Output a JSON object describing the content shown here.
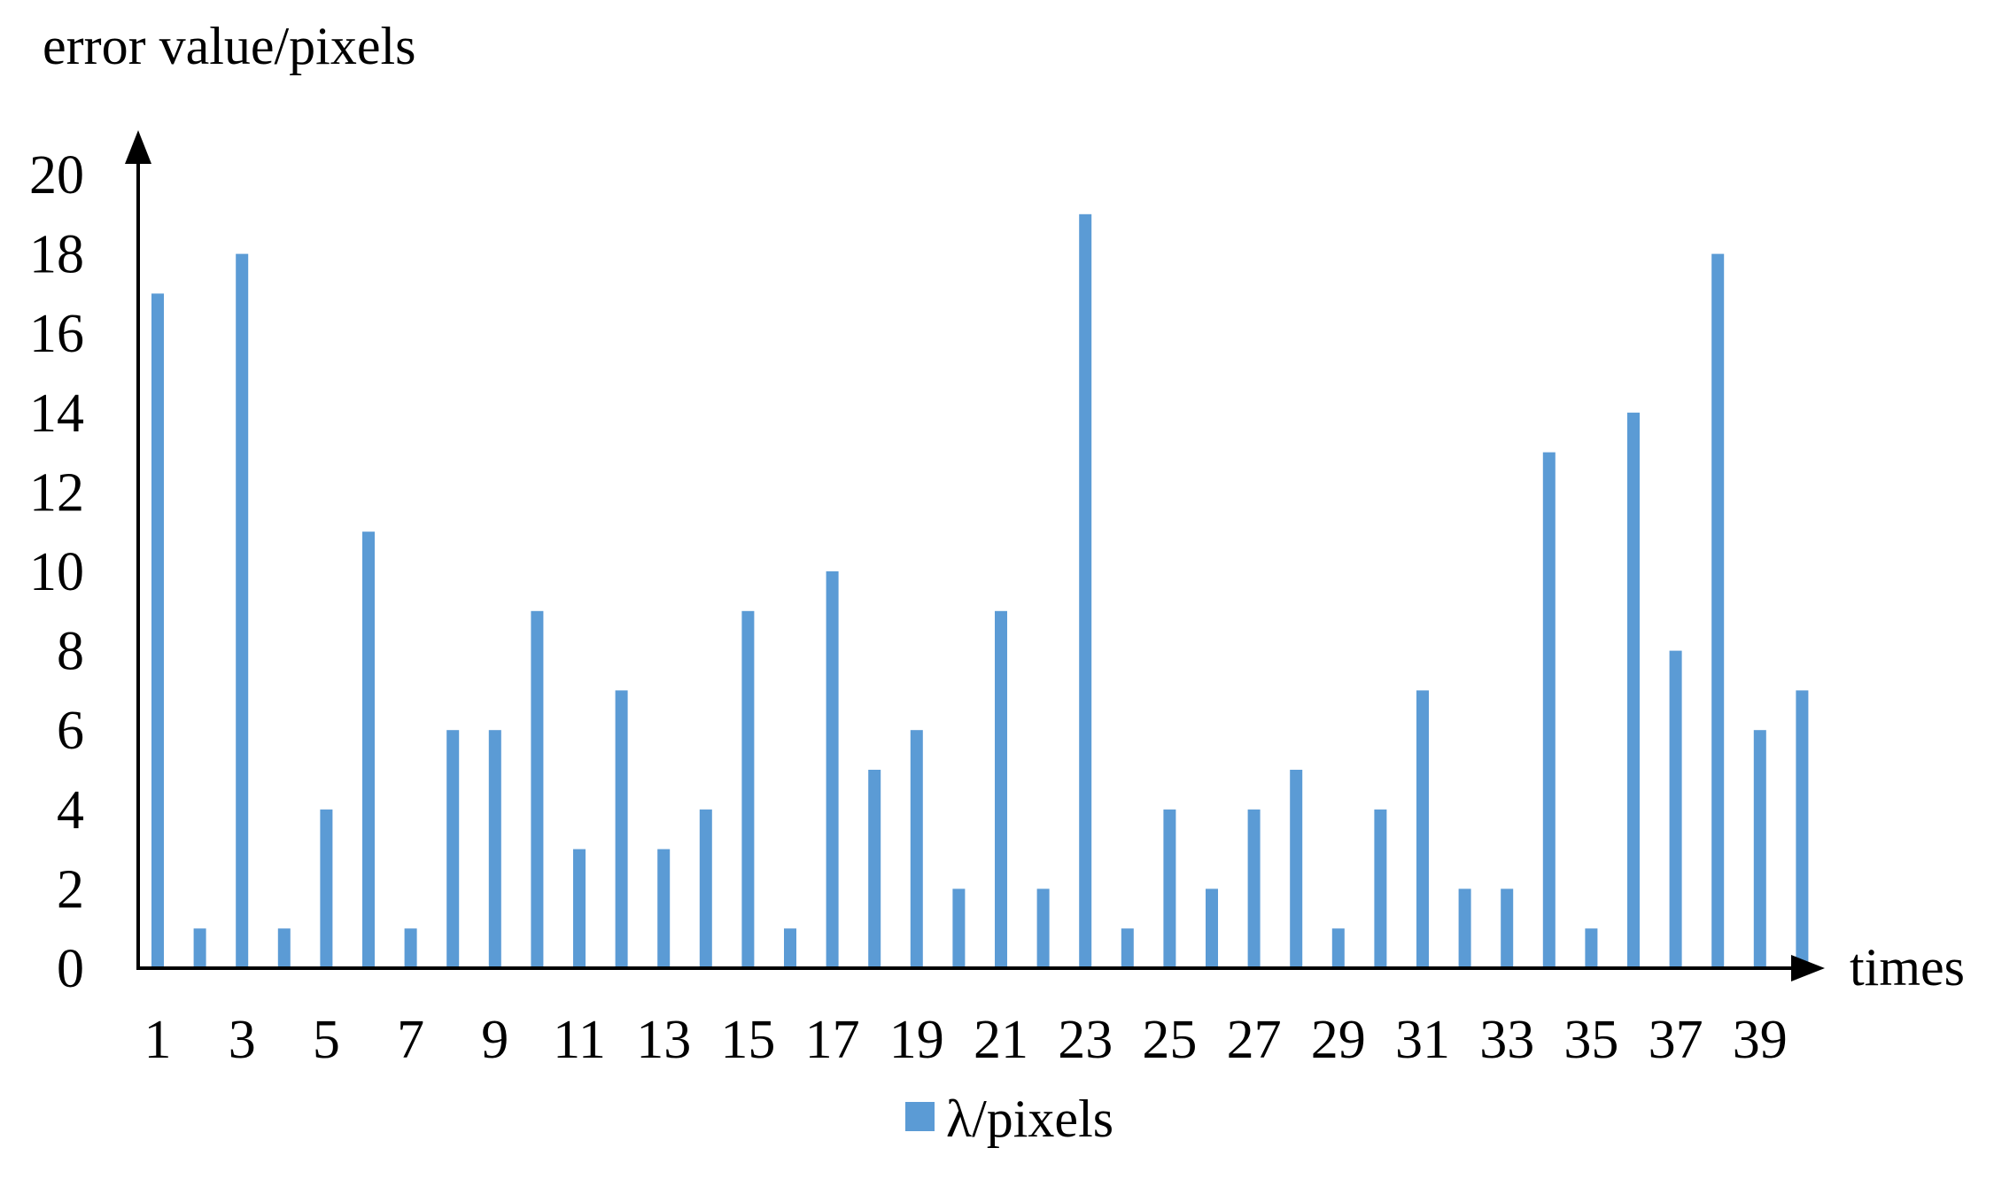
{
  "chart_data": {
    "type": "bar",
    "ylabel": "error value/pixels",
    "xlabel": "times",
    "ylim": [
      0,
      20
    ],
    "y_ticks": [
      "0",
      "2",
      "4",
      "6",
      "8",
      "10",
      "12",
      "14",
      "16",
      "18",
      "20"
    ],
    "categories": [
      "1",
      "2",
      "3",
      "4",
      "5",
      "6",
      "7",
      "8",
      "9",
      "10",
      "11",
      "12",
      "13",
      "14",
      "15",
      "16",
      "17",
      "18",
      "19",
      "20",
      "21",
      "22",
      "23",
      "24",
      "25",
      "26",
      "27",
      "28",
      "29",
      "30",
      "31",
      "32",
      "33",
      "34",
      "35",
      "36",
      "37",
      "38",
      "39",
      "40"
    ],
    "x_tick_labels": [
      "1",
      "3",
      "5",
      "7",
      "9",
      "11",
      "13",
      "15",
      "17",
      "19",
      "21",
      "23",
      "25",
      "27",
      "29",
      "31",
      "33",
      "35",
      "37",
      "39"
    ],
    "series": [
      {
        "name": "λ/pixels",
        "color": "#5B9BD5",
        "values": [
          17,
          1,
          18,
          1,
          4,
          11,
          1,
          6,
          6,
          9,
          3,
          7,
          3,
          4,
          9,
          1,
          10,
          5,
          6,
          2,
          9,
          2,
          19,
          1,
          4,
          2,
          4,
          5,
          1,
          4,
          7,
          2,
          2,
          13,
          1,
          14,
          8,
          18,
          6,
          7
        ]
      }
    ],
    "grid": false,
    "legend_position": "bottom"
  }
}
